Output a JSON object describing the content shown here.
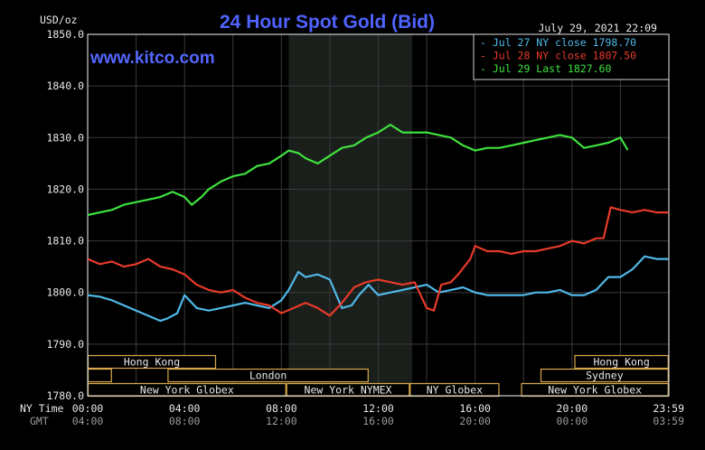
{
  "chart_data": {
    "type": "line",
    "title": "24 Hour Spot Gold (Bid)",
    "watermark": "www.kitco.com",
    "timestamp": "July 29, 2021 22:09",
    "ylabel": "USD/oz",
    "ylim": [
      1780,
      1850
    ],
    "y_ticks": [
      "1850.0",
      "1840.0",
      "1830.0",
      "1820.0",
      "1810.0",
      "1800.0",
      "1790.0",
      "1780.0"
    ],
    "x_row_label_ny": "NY Time",
    "x_row_label_gmt": "GMT",
    "x_ticks_ny": [
      "00:00",
      "04:00",
      "08:00",
      "12:00",
      "16:00",
      "20:00",
      "23:59"
    ],
    "x_ticks_gmt": [
      "04:00",
      "08:00",
      "12:00",
      "16:00",
      "20:00",
      "00:00",
      "03:59"
    ],
    "x_range_hours": [
      0,
      24
    ],
    "grid": true,
    "legend_position": "top-right",
    "legend": [
      {
        "text": "Jul 27 NY close 1798.70",
        "color": "#4fb8e8"
      },
      {
        "text": "Jul 28 NY close 1807.50",
        "color": "#e83a2a"
      },
      {
        "text": "Jul 29 Last 1827.60",
        "color": "#3fe23f"
      }
    ],
    "shading": [
      {
        "from_hour": 8.3,
        "to_hour": 13.4,
        "label": "NYMEX hours"
      }
    ],
    "sessions": [
      {
        "label": "Hong Kong",
        "start": 0,
        "end": 5.3,
        "row": 0
      },
      {
        "label": "Hong Kong",
        "start": 20.1,
        "end": 23.99,
        "row": 0
      },
      {
        "label": "",
        "start": 0,
        "end": 1.0,
        "row": 1
      },
      {
        "label": "London",
        "start": 3.3,
        "end": 11.6,
        "row": 1
      },
      {
        "label": "Sydney",
        "start": 18.7,
        "end": 23.99,
        "row": 1
      },
      {
        "label": "New York Globex",
        "start": 0,
        "end": 8.2,
        "row": 2
      },
      {
        "label": "New York NYMEX",
        "start": 8.2,
        "end": 13.3,
        "row": 2
      },
      {
        "label": "NY Globex",
        "start": 13.3,
        "end": 17.0,
        "row": 2
      },
      {
        "label": "New York Globex",
        "start": 17.9,
        "end": 23.99,
        "row": 2
      }
    ],
    "series": [
      {
        "name": "Jul 27",
        "color": "#4fb8e8",
        "x": [
          0,
          0.5,
          1.0,
          1.5,
          2.0,
          2.5,
          3.0,
          3.3,
          3.7,
          4.0,
          4.5,
          5.0,
          5.5,
          6.0,
          6.5,
          7.0,
          7.5,
          8.0,
          8.3,
          8.7,
          9.0,
          9.5,
          10.0,
          10.5,
          10.9,
          11.2,
          11.6,
          12.0,
          12.5,
          13.0,
          13.5,
          14.0,
          14.5,
          15.0,
          15.5,
          16.0,
          16.5,
          17.0,
          17.5,
          18.0,
          18.5,
          19.0,
          19.5,
          20.0,
          20.5,
          21.0,
          21.5,
          22.0,
          22.5,
          23.0,
          23.5,
          23.99
        ],
        "values": [
          1799.5,
          1799.2,
          1798.5,
          1797.5,
          1796.5,
          1795.5,
          1794.5,
          1795.0,
          1796.0,
          1799.5,
          1797.0,
          1796.5,
          1797.0,
          1797.5,
          1798.0,
          1797.5,
          1797.0,
          1798.5,
          1800.5,
          1804.0,
          1803.0,
          1803.5,
          1802.5,
          1797.0,
          1797.5,
          1799.5,
          1801.5,
          1799.5,
          1800.0,
          1800.5,
          1801.0,
          1801.5,
          1800.0,
          1800.5,
          1801.0,
          1800.0,
          1799.5,
          1799.5,
          1799.5,
          1799.5,
          1800.0,
          1800.0,
          1800.5,
          1799.5,
          1799.5,
          1800.5,
          1803.0,
          1803.0,
          1804.5,
          1807.0,
          1806.5,
          1806.5
        ]
      },
      {
        "name": "Jul 28",
        "color": "#e83a2a",
        "x": [
          0,
          0.5,
          1.0,
          1.5,
          2.0,
          2.5,
          3.0,
          3.5,
          4.0,
          4.5,
          5.0,
          5.5,
          6.0,
          6.5,
          7.0,
          7.5,
          8.0,
          8.5,
          9.0,
          9.5,
          10.0,
          10.5,
          11.0,
          11.5,
          12.0,
          12.5,
          13.0,
          13.5,
          14.0,
          14.3,
          14.6,
          15.0,
          15.3,
          15.8,
          16.0,
          16.5,
          17.0,
          17.5,
          18.0,
          18.5,
          19.0,
          19.5,
          20.0,
          20.5,
          21.0,
          21.3,
          21.6,
          22.0,
          22.5,
          23.0,
          23.5,
          23.99
        ],
        "values": [
          1806.5,
          1805.5,
          1806.0,
          1805.0,
          1805.5,
          1806.5,
          1805.0,
          1804.5,
          1803.5,
          1801.5,
          1800.5,
          1800.0,
          1800.5,
          1799.0,
          1798.0,
          1797.5,
          1796.0,
          1797.0,
          1798.0,
          1797.0,
          1795.5,
          1798.0,
          1801.0,
          1802.0,
          1802.5,
          1802.0,
          1801.5,
          1802.0,
          1797.0,
          1796.5,
          1801.5,
          1802.0,
          1803.5,
          1806.5,
          1809.0,
          1808.0,
          1808.0,
          1807.5,
          1808.0,
          1808.0,
          1808.5,
          1809.0,
          1810.0,
          1809.5,
          1810.5,
          1810.5,
          1816.5,
          1816.0,
          1815.5,
          1816.0,
          1815.5,
          1815.5
        ]
      },
      {
        "name": "Jul 29",
        "color": "#3fe23f",
        "x": [
          0,
          0.5,
          1.0,
          1.5,
          2.0,
          2.5,
          3.0,
          3.5,
          4.0,
          4.3,
          4.7,
          5.0,
          5.5,
          6.0,
          6.5,
          7.0,
          7.5,
          8.0,
          8.3,
          8.7,
          9.0,
          9.5,
          10.0,
          10.5,
          11.0,
          11.5,
          12.0,
          12.5,
          13.0,
          13.5,
          14.0,
          14.5,
          15.0,
          15.5,
          16.0,
          16.5,
          17.0,
          17.5,
          18.0,
          18.5,
          19.0,
          19.5,
          20.0,
          20.5,
          21.0,
          21.5,
          22.0,
          22.3
        ],
        "values": [
          1815.0,
          1815.5,
          1816.0,
          1817.0,
          1817.5,
          1818.0,
          1818.5,
          1819.5,
          1818.5,
          1817.0,
          1818.5,
          1820.0,
          1821.5,
          1822.5,
          1823.0,
          1824.5,
          1825.0,
          1826.5,
          1827.5,
          1827.0,
          1826.0,
          1825.0,
          1826.5,
          1828.0,
          1828.5,
          1830.0,
          1831.0,
          1832.5,
          1831.0,
          1831.0,
          1831.0,
          1830.5,
          1830.0,
          1828.5,
          1827.5,
          1828.0,
          1828.0,
          1828.5,
          1829.0,
          1829.5,
          1830.0,
          1830.5,
          1830.0,
          1828.0,
          1828.5,
          1829.0,
          1830.0,
          1827.6
        ]
      }
    ]
  }
}
